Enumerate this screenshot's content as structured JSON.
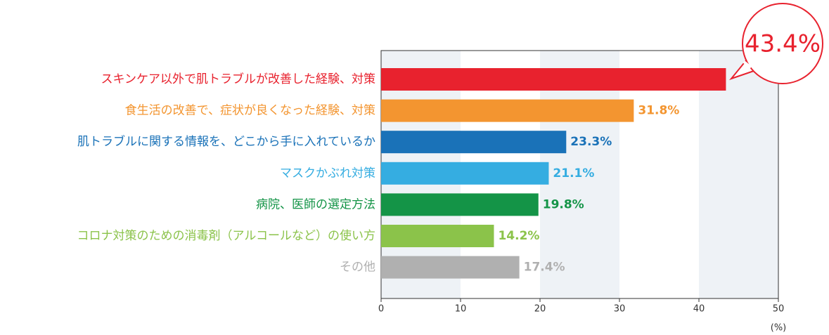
{
  "chart_data": {
    "type": "bar",
    "orientation": "horizontal",
    "categories": [
      "スキンケア以外で肌トラブルが改善した経験、対策",
      "食生活の改善で、症状が良くなった経験、対策",
      "肌トラブルに関する情報を、どこから手に入れているか",
      "マスクかぶれ対策",
      "病院、医師の選定方法",
      "コロナ対策のための消毒剤（アルコールなど）の使い方",
      "その他"
    ],
    "values": [
      43.4,
      31.8,
      23.3,
      21.1,
      19.8,
      14.2,
      17.4
    ],
    "value_labels": [
      "43.4%",
      "31.8%",
      "23.3%",
      "21.1%",
      "19.8%",
      "14.2%",
      "17.4%"
    ],
    "colors": [
      "#e8222e",
      "#f39530",
      "#1a72b8",
      "#35ade1",
      "#149447",
      "#8bc34a",
      "#b0b0b0"
    ],
    "xlim": [
      0,
      50
    ],
    "xticks": [
      0,
      10,
      20,
      30,
      40,
      50
    ],
    "x_axis_label": "(%)",
    "grid": true
  }
}
